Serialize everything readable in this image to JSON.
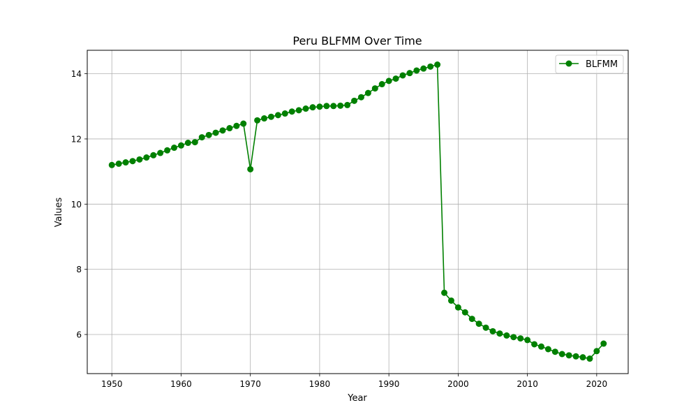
{
  "chart_data": {
    "type": "line",
    "title": "Peru BLFMM Over Time",
    "xlabel": "Year",
    "ylabel": "Values",
    "xlim": [
      1946.45,
      2024.55
    ],
    "ylim": [
      4.8,
      14.72
    ],
    "xticks": [
      1950,
      1960,
      1970,
      1980,
      1990,
      2000,
      2010,
      2020
    ],
    "yticks": [
      6,
      8,
      10,
      12,
      14
    ],
    "grid": true,
    "legend_position": "top-right",
    "series": [
      {
        "name": "BLFMM",
        "color": "#008000",
        "marker": "circle",
        "x": [
          1950,
          1951,
          1952,
          1953,
          1954,
          1955,
          1956,
          1957,
          1958,
          1959,
          1960,
          1961,
          1962,
          1963,
          1964,
          1965,
          1966,
          1967,
          1968,
          1969,
          1970,
          1971,
          1972,
          1973,
          1974,
          1975,
          1976,
          1977,
          1978,
          1979,
          1980,
          1981,
          1982,
          1983,
          1984,
          1985,
          1986,
          1987,
          1988,
          1989,
          1990,
          1991,
          1992,
          1993,
          1994,
          1995,
          1996,
          1997,
          1998,
          1999,
          2000,
          2001,
          2002,
          2003,
          2004,
          2005,
          2006,
          2007,
          2008,
          2009,
          2010,
          2011,
          2012,
          2013,
          2014,
          2015,
          2016,
          2017,
          2018,
          2019,
          2020,
          2021
        ],
        "values": [
          11.2,
          11.24,
          11.28,
          11.32,
          11.37,
          11.43,
          11.5,
          11.57,
          11.65,
          11.73,
          11.8,
          11.88,
          11.9,
          12.05,
          12.12,
          12.19,
          12.26,
          12.33,
          12.4,
          12.47,
          11.07,
          12.57,
          12.63,
          12.68,
          12.73,
          12.78,
          12.84,
          12.88,
          12.93,
          12.97,
          12.99,
          13.01,
          13.01,
          13.02,
          13.04,
          13.17,
          13.28,
          13.41,
          13.55,
          13.68,
          13.78,
          13.85,
          13.95,
          14.02,
          14.1,
          14.16,
          14.22,
          14.28,
          7.28,
          7.04,
          6.83,
          6.68,
          6.48,
          6.33,
          6.21,
          6.1,
          6.03,
          5.97,
          5.92,
          5.88,
          5.83,
          5.7,
          5.63,
          5.55,
          5.47,
          5.4,
          5.36,
          5.33,
          5.3,
          5.26,
          5.49,
          5.72
        ]
      }
    ]
  }
}
